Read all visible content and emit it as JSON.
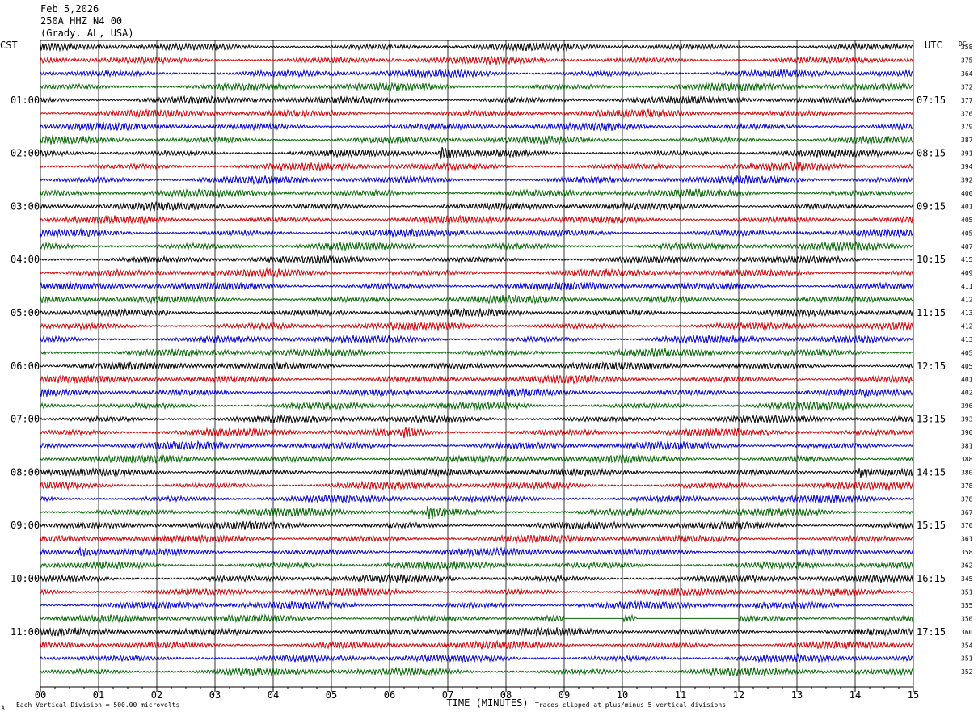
{
  "header": {
    "date": "Feb 5,2026",
    "station": "250A HHZ N4 00",
    "location": "(Grady, AL, USA)"
  },
  "axes": {
    "left_label": "CST",
    "right_label": "UTC",
    "dc_label": "DC",
    "xlabel": "TIME (MINUTES)",
    "x_ticks": [
      "00",
      "01",
      "02",
      "03",
      "04",
      "05",
      "06",
      "07",
      "08",
      "09",
      "10",
      "11",
      "12",
      "13",
      "14",
      "15"
    ]
  },
  "footer": {
    "left_note": "Each Vertical Division =  500.00 microvolts",
    "right_note": "Traces clipped at plus/minus 5 vertical divisions",
    "corner_mark": "A"
  },
  "colors": {
    "trace_cycle": [
      "#000000",
      "#cc0000",
      "#0000cc",
      "#006600"
    ],
    "grid": "#000000",
    "background": "#ffffff"
  },
  "chart_data": {
    "type": "line",
    "title": "250A HHZ N4 00",
    "xlabel": "TIME (MINUTES)",
    "xlim": [
      0,
      15
    ],
    "trace_count": 48,
    "minutes_per_trace": 15,
    "left_hour_labels": [
      {
        "trace": 4,
        "label": "01:00"
      },
      {
        "trace": 8,
        "label": "02:00"
      },
      {
        "trace": 12,
        "label": "03:00"
      },
      {
        "trace": 16,
        "label": "04:00"
      },
      {
        "trace": 20,
        "label": "05:00"
      },
      {
        "trace": 24,
        "label": "06:00"
      },
      {
        "trace": 28,
        "label": "07:00"
      },
      {
        "trace": 32,
        "label": "08:00"
      },
      {
        "trace": 36,
        "label": "09:00"
      },
      {
        "trace": 40,
        "label": "10:00"
      },
      {
        "trace": 44,
        "label": "11:00"
      }
    ],
    "right_hour_labels": [
      {
        "trace": 4,
        "label": "07:15"
      },
      {
        "trace": 8,
        "label": "08:15"
      },
      {
        "trace": 12,
        "label": "09:15"
      },
      {
        "trace": 16,
        "label": "10:15"
      },
      {
        "trace": 20,
        "label": "11:15"
      },
      {
        "trace": 24,
        "label": "12:15"
      },
      {
        "trace": 28,
        "label": "13:15"
      },
      {
        "trace": 32,
        "label": "14:15"
      },
      {
        "trace": 36,
        "label": "15:15"
      },
      {
        "trace": 40,
        "label": "16:15"
      },
      {
        "trace": 44,
        "label": "17:15"
      }
    ],
    "dc_offsets": [
      "358",
      "375",
      "364",
      "372",
      "377",
      "376",
      "379",
      "387",
      "391",
      "394",
      "392",
      "400",
      "401",
      "405",
      "405",
      "407",
      "415",
      "409",
      "411",
      "412",
      "413",
      "412",
      "413",
      "405",
      "405",
      "401",
      "402",
      "396",
      "393",
      "390",
      "381",
      "388",
      "380",
      "378",
      "378",
      "367",
      "370",
      "361",
      "358",
      "362",
      "345",
      "351",
      "355",
      "356",
      "360",
      "354",
      "351",
      "352"
    ],
    "amplitude_scale": "500.00 microvolts per vertical division",
    "events": [
      {
        "trace": 8,
        "minute": 6.9,
        "amplitude": 2.2
      },
      {
        "trace": 29,
        "minute": 6.3,
        "amplitude": 1.2
      },
      {
        "trace": 32,
        "minute": 14.1,
        "amplitude": 1.4
      },
      {
        "trace": 35,
        "minute": 6.7,
        "amplitude": 1.5
      },
      {
        "trace": 38,
        "minute": 0.7,
        "amplitude": 1.2
      }
    ],
    "flat_segments": [
      {
        "trace": 43,
        "from_minute": 9.0,
        "to_minute": 10.0
      },
      {
        "trace": 43,
        "from_minute": 10.25,
        "to_minute": 12.0
      }
    ]
  }
}
